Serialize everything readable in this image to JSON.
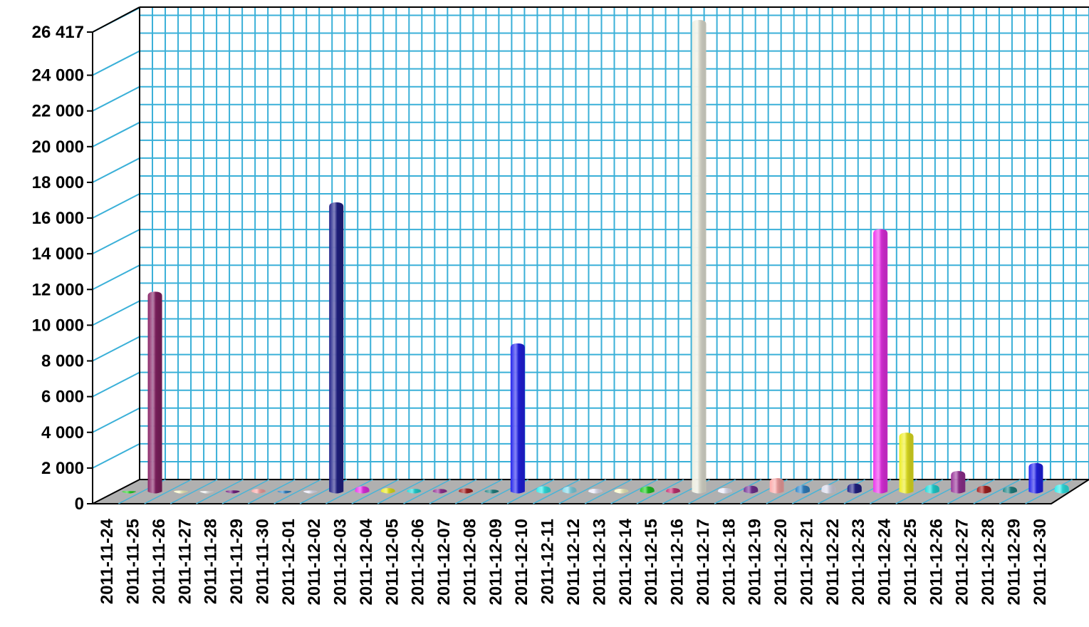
{
  "chart_data": {
    "type": "bar",
    "style": "3d-cylinder",
    "grid": true,
    "legend": "none",
    "ylim": [
      0,
      26417
    ],
    "y_ticks": [
      0,
      2000,
      4000,
      6000,
      8000,
      10000,
      12000,
      14000,
      16000,
      18000,
      20000,
      22000,
      24000,
      26417
    ],
    "y_tick_labels": [
      "0",
      "2 000",
      "4 000",
      "6 000",
      "8 000",
      "10 000",
      "12 000",
      "14 000",
      "16 000",
      "18 000",
      "20 000",
      "22 000",
      "24 000",
      "26 417"
    ],
    "categories": [
      "2011-11-24",
      "2011-11-25",
      "2011-11-26",
      "2011-11-27",
      "2011-11-28",
      "2011-11-29",
      "2011-11-30",
      "2011-12-01",
      "2011-12-02",
      "2011-12-03",
      "2011-12-04",
      "2011-12-05",
      "2011-12-06",
      "2011-12-07",
      "2011-12-08",
      "2011-12-09",
      "2011-12-10",
      "2011-12-11",
      "2011-12-12",
      "2011-12-13",
      "2011-12-14",
      "2011-12-15",
      "2011-12-16",
      "2011-12-17",
      "2011-12-18",
      "2011-12-19",
      "2011-12-20",
      "2011-12-21",
      "2011-12-22",
      "2011-12-23",
      "2011-12-24",
      "2011-12-25",
      "2011-12-26",
      "2011-12-27",
      "2011-12-28",
      "2011-12-29",
      "2011-12-30"
    ],
    "values": [
      30,
      11200,
      60,
      40,
      70,
      150,
      50,
      60,
      16200,
      300,
      200,
      160,
      150,
      180,
      110,
      8300,
      300,
      280,
      160,
      160,
      290,
      200,
      26417,
      200,
      330,
      760,
      350,
      380,
      450,
      14700,
      3300,
      380,
      1150,
      330,
      280,
      1600,
      400
    ],
    "colors": [
      "#22dd22",
      "#882266",
      "#ffffcc",
      "#eeeeee",
      "#772288",
      "#ffaaaa",
      "#3388cc",
      "#eeeeff",
      "#22228a",
      "#ee33ee",
      "#eeee22",
      "#22dddd",
      "#993399",
      "#aa2222",
      "#228888",
      "#2222ee",
      "#33eeee",
      "#88ddee",
      "#eeeeff",
      "#ffffcc",
      "#22cc22",
      "#cc3377",
      "#eeeee0",
      "#eeeeff",
      "#773399",
      "#ffaaaa",
      "#3388cc",
      "#ddddee",
      "#22228a",
      "#ee33ee",
      "#eeee22",
      "#22dddd",
      "#993399",
      "#aa2222",
      "#228888",
      "#2222ee",
      "#33eeee"
    ]
  }
}
